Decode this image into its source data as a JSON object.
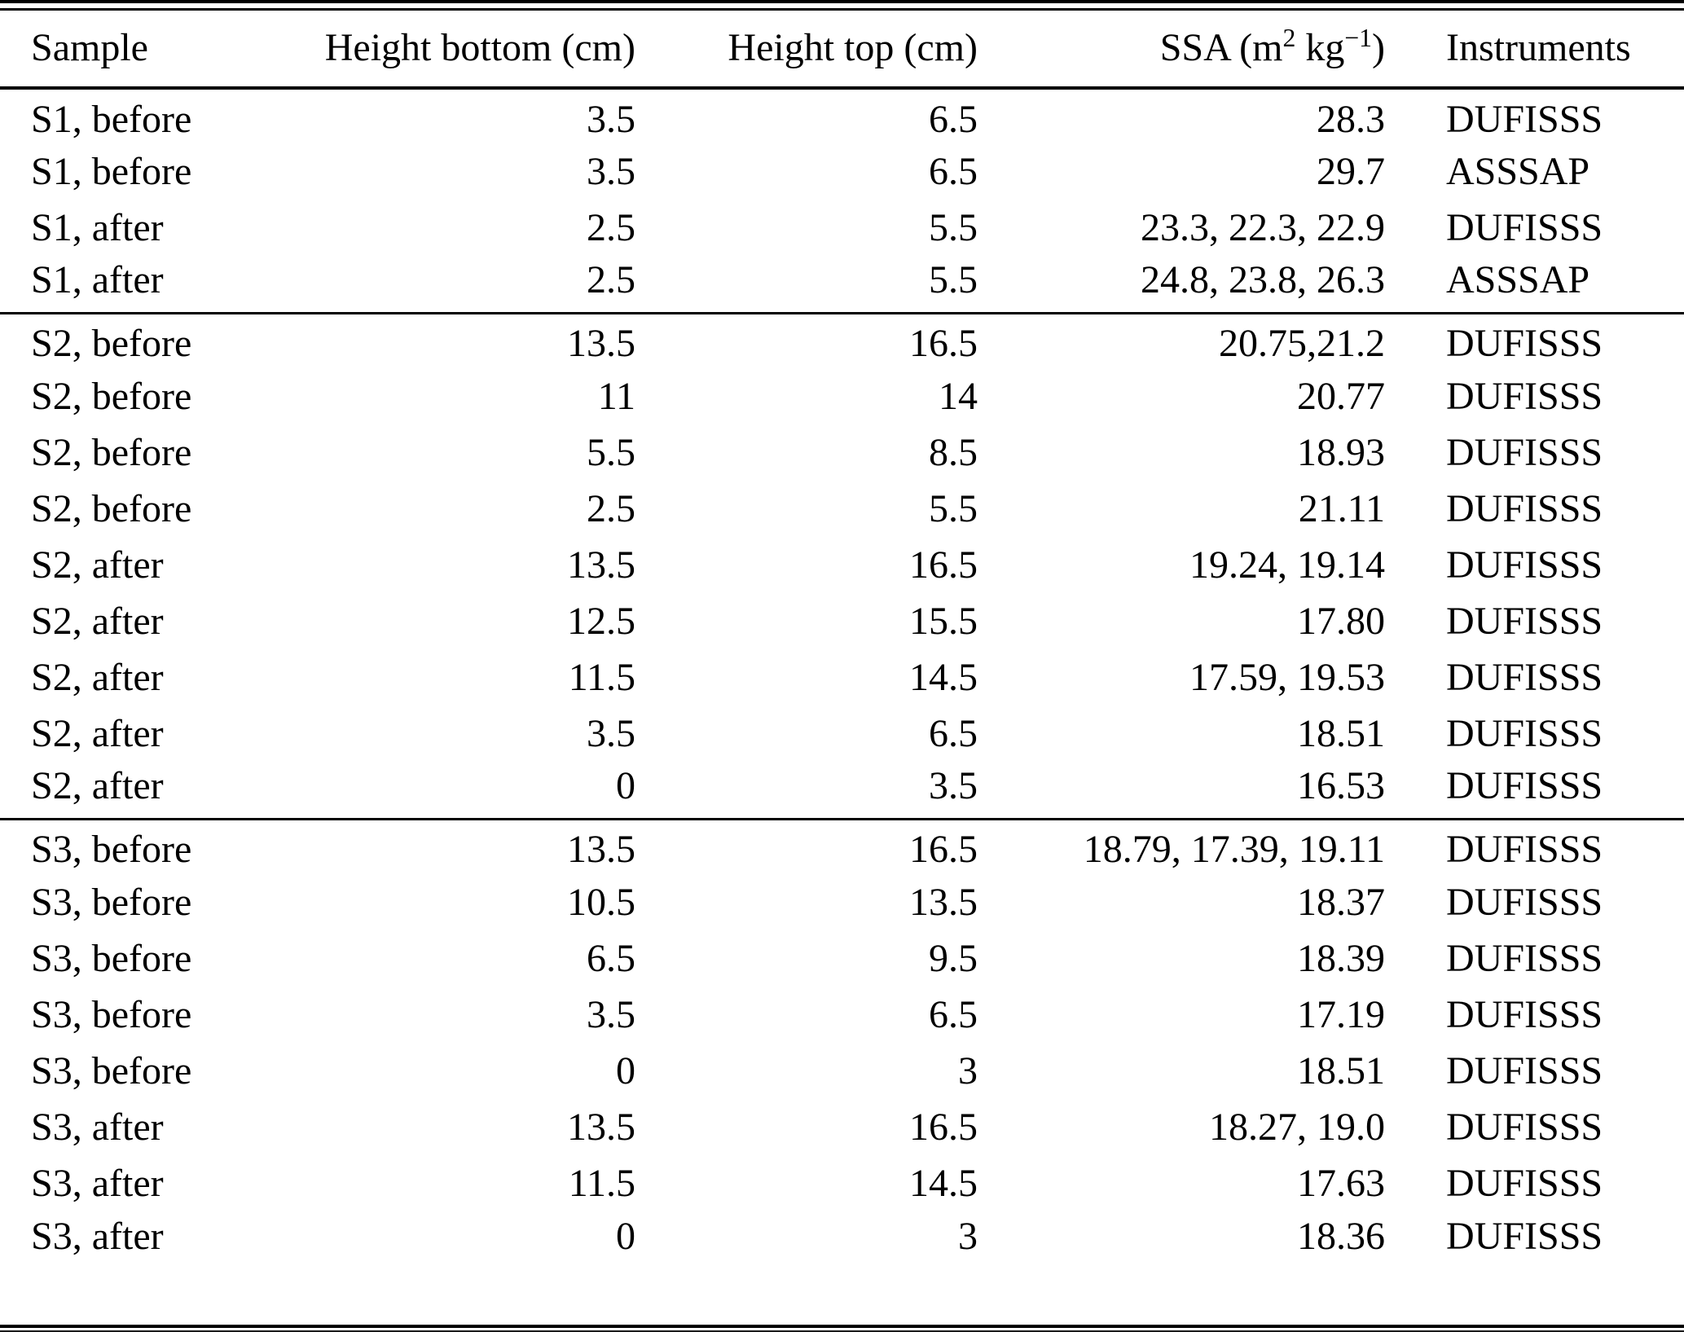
{
  "table": {
    "headers": {
      "sample": "Sample",
      "height_bottom": "Height bottom (cm)",
      "height_top": "Height top (cm)",
      "ssa_prefix": "SSA (m",
      "ssa_sup1": "2",
      "ssa_mid": " kg",
      "ssa_sup2": "−1",
      "ssa_suffix": ")",
      "instruments": "Instruments"
    },
    "groups": [
      {
        "name": "S1",
        "rows": [
          {
            "sample": "S1, before",
            "height_bottom": "3.5",
            "height_top": "6.5",
            "ssa": "28.3",
            "instrument": "DUFISSS"
          },
          {
            "sample": "S1, before",
            "height_bottom": "3.5",
            "height_top": "6.5",
            "ssa": "29.7",
            "instrument": "ASSSAP"
          },
          {
            "sample": "S1, after",
            "height_bottom": "2.5",
            "height_top": "5.5",
            "ssa": "23.3, 22.3, 22.9",
            "instrument": "DUFISSS"
          },
          {
            "sample": "S1, after",
            "height_bottom": "2.5",
            "height_top": "5.5",
            "ssa": "24.8, 23.8, 26.3",
            "instrument": "ASSSAP"
          }
        ]
      },
      {
        "name": "S2",
        "rows": [
          {
            "sample": "S2, before",
            "height_bottom": "13.5",
            "height_top": "16.5",
            "ssa": "20.75,21.2",
            "instrument": "DUFISSS"
          },
          {
            "sample": "S2, before",
            "height_bottom": "11",
            "height_top": "14",
            "ssa": "20.77",
            "instrument": "DUFISSS"
          },
          {
            "sample": "S2, before",
            "height_bottom": "5.5",
            "height_top": "8.5",
            "ssa": "18.93",
            "instrument": "DUFISSS"
          },
          {
            "sample": "S2, before",
            "height_bottom": "2.5",
            "height_top": "5.5",
            "ssa": "21.11",
            "instrument": "DUFISSS"
          },
          {
            "sample": "S2, after",
            "height_bottom": "13.5",
            "height_top": "16.5",
            "ssa": "19.24, 19.14",
            "instrument": "DUFISSS"
          },
          {
            "sample": "S2, after",
            "height_bottom": "12.5",
            "height_top": "15.5",
            "ssa": "17.80",
            "instrument": "DUFISSS"
          },
          {
            "sample": "S2, after",
            "height_bottom": "11.5",
            "height_top": "14.5",
            "ssa": "17.59, 19.53",
            "instrument": "DUFISSS"
          },
          {
            "sample": "S2, after",
            "height_bottom": "3.5",
            "height_top": "6.5",
            "ssa": "18.51",
            "instrument": "DUFISSS"
          },
          {
            "sample": "S2, after",
            "height_bottom": "0",
            "height_top": "3.5",
            "ssa": "16.53",
            "instrument": "DUFISSS"
          }
        ]
      },
      {
        "name": "S3",
        "rows": [
          {
            "sample": "S3, before",
            "height_bottom": "13.5",
            "height_top": "16.5",
            "ssa": "18.79, 17.39, 19.11",
            "instrument": "DUFISSS"
          },
          {
            "sample": "S3, before",
            "height_bottom": "10.5",
            "height_top": "13.5",
            "ssa": "18.37",
            "instrument": "DUFISSS"
          },
          {
            "sample": "S3, before",
            "height_bottom": "6.5",
            "height_top": "9.5",
            "ssa": "18.39",
            "instrument": "DUFISSS"
          },
          {
            "sample": "S3, before",
            "height_bottom": "3.5",
            "height_top": "6.5",
            "ssa": "17.19",
            "instrument": "DUFISSS"
          },
          {
            "sample": "S3, before",
            "height_bottom": "0",
            "height_top": "3",
            "ssa": "18.51",
            "instrument": "DUFISSS"
          },
          {
            "sample": "S3, after",
            "height_bottom": "13.5",
            "height_top": "16.5",
            "ssa": "18.27, 19.0",
            "instrument": "DUFISSS"
          },
          {
            "sample": "S3, after",
            "height_bottom": "11.5",
            "height_top": "14.5",
            "ssa": "17.63",
            "instrument": "DUFISSS"
          },
          {
            "sample": "S3, after",
            "height_bottom": "0",
            "height_top": "3",
            "ssa": "18.36",
            "instrument": "DUFISSS"
          }
        ]
      }
    ]
  }
}
